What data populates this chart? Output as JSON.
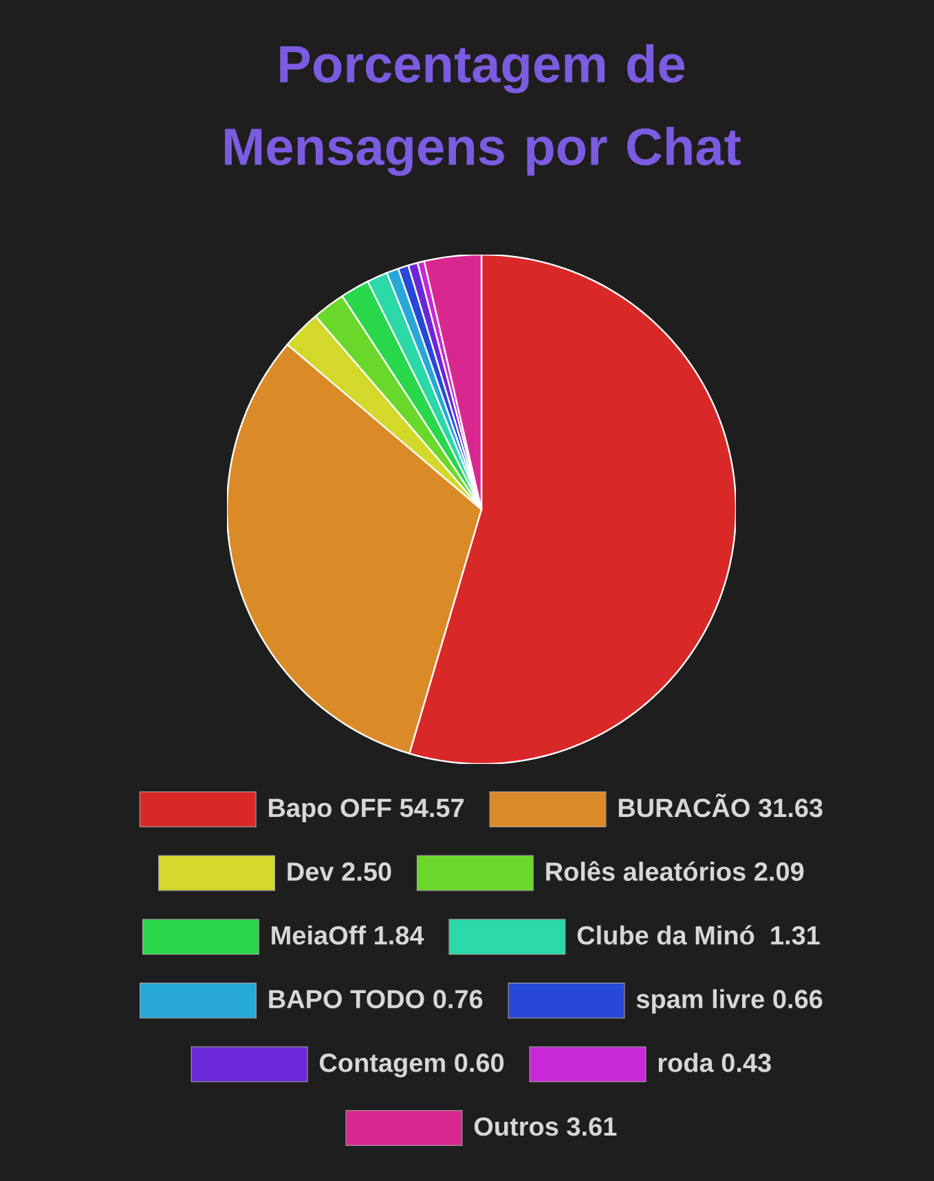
{
  "chart_data": {
    "type": "pie",
    "title": "Porcentagem de Mensagens por Chat",
    "categories": [
      "Bapo OFF",
      "BURACÃO",
      "Dev",
      "Rolês aleatórios",
      "MeiaOff",
      "Clube da Minó ",
      "BAPO TODO",
      "spam livre",
      "Contagem",
      "roda",
      "Outros"
    ],
    "values": [
      54.57,
      31.63,
      2.5,
      2.09,
      1.84,
      1.31,
      0.76,
      0.66,
      0.6,
      0.43,
      3.61
    ],
    "value_labels": [
      "54.57",
      "31.63",
      "2.50",
      "2.09",
      "1.84",
      "1.31",
      "0.76",
      "0.66",
      "0.60",
      "0.43",
      "3.61"
    ],
    "colors": [
      "#d92828",
      "#db8a28",
      "#d4d82a",
      "#6ad82a",
      "#28d84a",
      "#2ad8a8",
      "#28a8d8",
      "#2848d8",
      "#6a28d8",
      "#c828d8",
      "#d82890"
    ],
    "legend": "bottom"
  }
}
